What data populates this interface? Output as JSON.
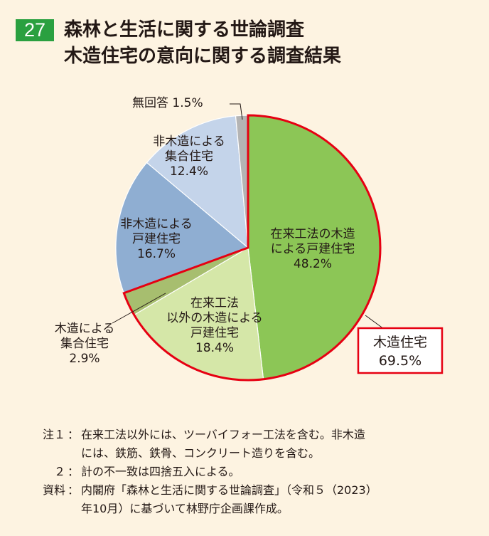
{
  "figure": {
    "number": "27",
    "title_line1": "森林と生活に関する世論調査",
    "title_line2": "木造住宅の意向に関する調査結果"
  },
  "chart_data": {
    "type": "pie",
    "start_angle_deg": 0,
    "direction": "clockwise",
    "slices": [
      {
        "label_lines": [
          "在来工法の木造",
          "による戸建住宅"
        ],
        "value": 48.2,
        "value_text": "48.2%",
        "color": "#8cc656"
      },
      {
        "label_lines": [
          "在来工法",
          "以外の木造による",
          "戸建住宅"
        ],
        "value": 18.4,
        "value_text": "18.4%",
        "color": "#d5e7a8"
      },
      {
        "label_lines": [
          "木造による",
          "集合住宅"
        ],
        "value": 2.9,
        "value_text": "2.9%",
        "color": "#a7be6f"
      },
      {
        "label_lines": [
          "非木造による",
          "戸建住宅"
        ],
        "value": 16.7,
        "value_text": "16.7%",
        "color": "#8faed2"
      },
      {
        "label_lines": [
          "非木造による",
          "集合住宅"
        ],
        "value": 12.4,
        "value_text": "12.4%",
        "color": "#c4d4ea"
      },
      {
        "label_lines": [
          "無回答"
        ],
        "value": 1.5,
        "value_text": "1.5%",
        "color": "#b4b4b4"
      }
    ],
    "group_highlight": {
      "label": "木造住宅",
      "value_text": "69.5%",
      "slice_indices": [
        0,
        1,
        2
      ],
      "color": "#e60012"
    }
  },
  "notes": [
    {
      "head": "注１",
      "body": "在来工法以外には、ツーバイフォー工法を含む。非木造\nには、鉄筋、鉄骨、コンクリート造りを含む。"
    },
    {
      "head": "２",
      "body": "計の不一致は四捨五入による。"
    },
    {
      "head": "資料",
      "body": "内閣府「森林と生活に関する世論調査」（令和５（2023）\n年10月）に基づいて林野庁企画課作成。"
    }
  ],
  "note_separator": "："
}
